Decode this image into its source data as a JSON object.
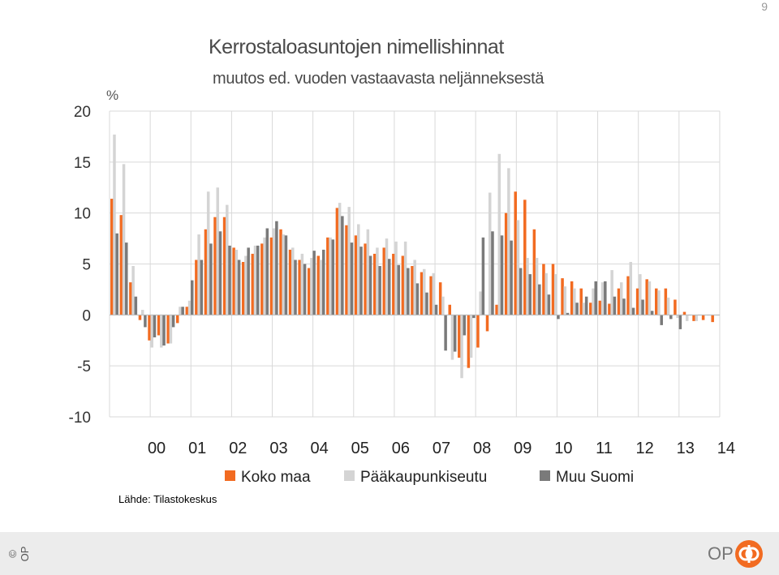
{
  "page_number": "9",
  "source": "Lähde: Tilastokeskus",
  "copyright": "© OP",
  "logo_text": "OP",
  "colors": {
    "koko": "#f26b21",
    "paakaupunki": "#d4d4d4",
    "muu": "#7a7a7a",
    "grid": "#d9d9d9"
  },
  "chart_data": {
    "type": "bar",
    "title": "Kerrostaloasuntojen nimellishinnat",
    "subtitle": "muutos ed. vuoden vastaavasta neljänneksestä",
    "ylabel": "%",
    "ylim": [
      -10,
      20
    ],
    "yticks": [
      20,
      15,
      10,
      5,
      0,
      -5,
      -10
    ],
    "year_labels": [
      "00",
      "01",
      "02",
      "03",
      "04",
      "05",
      "06",
      "07",
      "08",
      "09",
      "10",
      "11",
      "12",
      "13",
      "14"
    ],
    "grid": true,
    "legend_position": "bottom",
    "series": [
      {
        "name": "Koko maa",
        "values": [
          11.4,
          9.8,
          3.2,
          -0.5,
          -2.5,
          -2.0,
          -2.8,
          -0.8,
          0.8,
          5.4,
          8.4,
          9.6,
          9.6,
          6.6,
          5.2,
          6.0,
          7.0,
          7.6,
          8.4,
          6.4,
          5.4,
          4.6,
          5.8,
          7.6,
          10.5,
          8.8,
          7.8,
          7.0,
          6.0,
          6.6,
          6.0,
          5.8,
          4.8,
          4.2,
          3.8,
          3.2,
          1.0,
          -4.2,
          -5.2,
          -3.2,
          -1.6,
          1.0,
          10.0,
          12.1,
          11.3,
          8.4,
          5.0,
          5.0,
          3.6,
          3.3,
          2.6,
          1.2,
          1.4,
          1.1,
          2.6,
          3.8,
          2.6,
          3.5,
          2.6,
          2.6,
          1.5,
          0.3,
          -0.6,
          -0.5,
          -0.7
        ]
      },
      {
        "name": "Pääkaupunkiseutu",
        "values": [
          17.7,
          14.8,
          4.8,
          0.5,
          -3.2,
          -3.2,
          -2.8,
          0.8,
          1.4,
          7.9,
          12.1,
          12.5,
          10.8,
          6.4,
          5.8,
          6.8,
          7.6,
          8.5,
          7.9,
          6.6,
          6.0,
          5.6,
          5.4,
          7.6,
          11.0,
          10.6,
          8.9,
          8.4,
          6.6,
          7.5,
          7.2,
          7.2,
          5.4,
          4.5,
          4.1,
          1.8,
          -4.4,
          -6.2,
          -4.2,
          2.3,
          12.0,
          15.8,
          14.4,
          9.3,
          5.6,
          5.6,
          4.1,
          4.0,
          2.8,
          2.6,
          1.2,
          2.6,
          3.2,
          4.4,
          3.2,
          5.2,
          4.0,
          3.3,
          2.4,
          1.7,
          -0.3,
          -0.6,
          -0.6,
          0.0,
          0.0
        ]
      },
      {
        "name": "Muu Suomi",
        "values": [
          8.0,
          7.1,
          1.8,
          -1.2,
          -2.2,
          -3.0,
          -1.2,
          0.8,
          3.4,
          5.4,
          7.0,
          8.2,
          6.8,
          5.4,
          6.6,
          6.8,
          8.5,
          9.2,
          7.8,
          5.4,
          5.0,
          6.3,
          6.4,
          7.4,
          9.7,
          7.1,
          6.7,
          5.8,
          4.8,
          5.5,
          4.9,
          4.6,
          3.1,
          2.2,
          1.0,
          -3.5,
          -3.6,
          -2.0,
          -0.3,
          7.6,
          8.2,
          7.8,
          7.3,
          4.6,
          4.0,
          3.0,
          2.0,
          -0.4,
          0.2,
          1.2,
          1.8,
          3.3,
          3.3,
          1.8,
          1.6,
          0.7,
          1.5,
          0.4,
          -1.0,
          -0.4,
          -1.4,
          0.0,
          0.0,
          0.0,
          0.0
        ]
      }
    ]
  }
}
